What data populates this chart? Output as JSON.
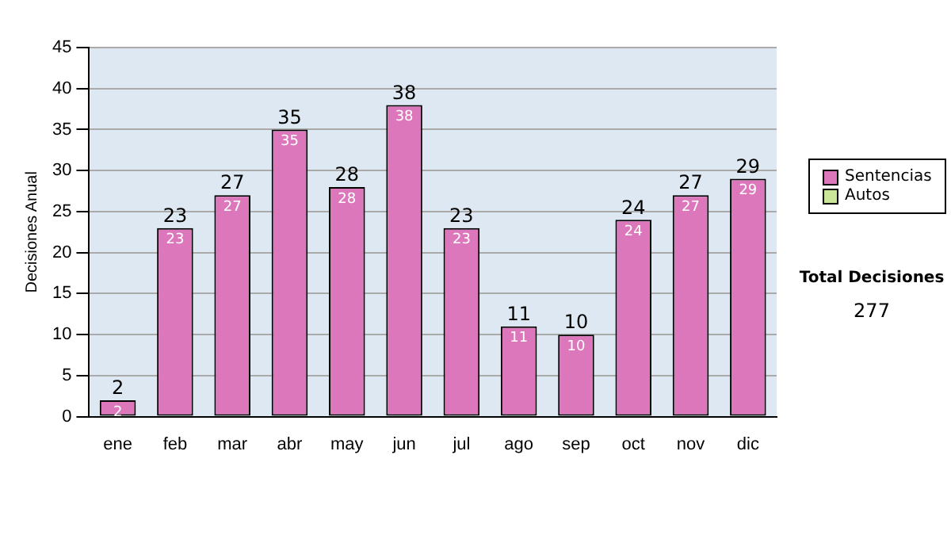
{
  "chart_data": {
    "type": "bar",
    "stacked": true,
    "ylabel": "Decisiones Anual",
    "categories": [
      "ene",
      "feb",
      "mar",
      "abr",
      "may",
      "jun",
      "jul",
      "ago",
      "sep",
      "oct",
      "nov",
      "dic"
    ],
    "series": [
      {
        "name": "Sentencias",
        "color": "#dd77bb",
        "values": [
          2,
          23,
          27,
          35,
          28,
          38,
          23,
          11,
          10,
          24,
          27,
          29
        ],
        "value_labels": [
          "2",
          "23",
          "27",
          "35",
          "28",
          "38",
          "23",
          "11",
          "10",
          "24",
          "27",
          "29"
        ]
      },
      {
        "name": "Autos",
        "color": "#cce699",
        "values": [
          0,
          0,
          0,
          0,
          0,
          0,
          0,
          0,
          0,
          0,
          0,
          0
        ]
      }
    ],
    "ylim": [
      0,
      45
    ],
    "yticks": [
      0,
      5,
      10,
      15,
      20,
      25,
      30,
      35,
      40,
      45
    ],
    "grid": "y",
    "legend": "right",
    "totals": [
      "2",
      "23",
      "27",
      "35",
      "28",
      "38",
      "23",
      "11",
      "10",
      "24",
      "27",
      "29"
    ],
    "annotations": [
      "Total Decisiones",
      "277"
    ]
  }
}
